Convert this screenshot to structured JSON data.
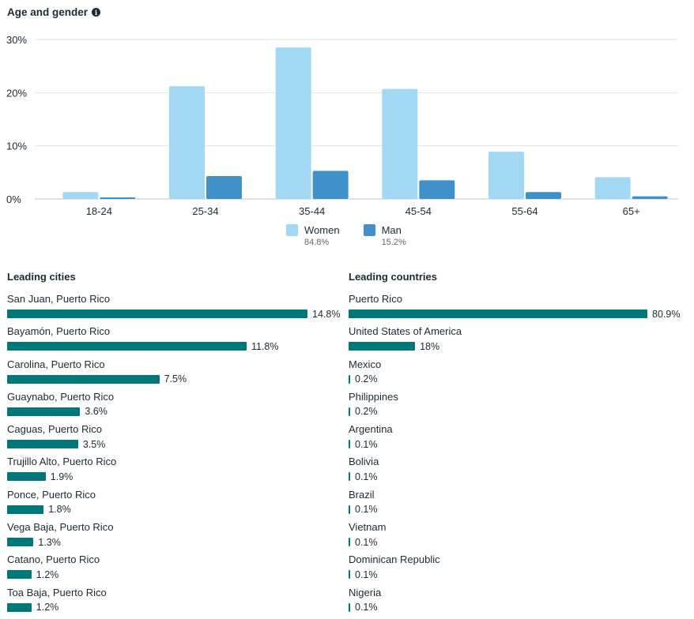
{
  "header": {
    "title": "Age and gender",
    "info_icon": "info-circle-icon"
  },
  "colors": {
    "women": "#a3d8f4",
    "man": "#3e91c9",
    "bar": "#00787a",
    "grid": "#e3e5e8"
  },
  "chart_data": [
    {
      "type": "bar",
      "title": "Age and gender",
      "categories": [
        "18-24",
        "25-34",
        "35-44",
        "45-54",
        "55-64",
        "65+"
      ],
      "series": [
        {
          "name": "Women",
          "total": "84.8%",
          "values": [
            1.3,
            21.2,
            28.5,
            20.7,
            8.9,
            4.1
          ]
        },
        {
          "name": "Man",
          "total": "15.2%",
          "values": [
            0.3,
            4.3,
            5.3,
            3.5,
            1.3,
            0.5
          ]
        }
      ],
      "yticks": [
        "0%",
        "10%",
        "20%",
        "30%"
      ],
      "ytick_values": [
        0,
        10,
        20,
        30
      ],
      "ylim": [
        0,
        30
      ],
      "xlabel": "",
      "ylabel": "",
      "grid": true,
      "legend": "bottom-center"
    },
    {
      "type": "bar",
      "title": "Leading cities",
      "orientation": "horizontal",
      "categories": [
        "San Juan, Puerto Rico",
        "Bayamón, Puerto Rico",
        "Carolina, Puerto Rico",
        "Guaynabo, Puerto Rico",
        "Caguas, Puerto Rico",
        "Trujillo Alto, Puerto Rico",
        "Ponce, Puerto Rico",
        "Vega Baja, Puerto Rico",
        "Catano, Puerto Rico",
        "Toa Baja, Puerto Rico"
      ],
      "values": [
        14.8,
        11.8,
        7.5,
        3.6,
        3.5,
        1.9,
        1.8,
        1.3,
        1.2,
        1.2
      ],
      "labels": [
        "14.8%",
        "11.8%",
        "7.5%",
        "3.6%",
        "3.5%",
        "1.9%",
        "1.8%",
        "1.3%",
        "1.2%",
        "1.2%"
      ]
    },
    {
      "type": "bar",
      "title": "Leading countries",
      "orientation": "horizontal",
      "categories": [
        "Puerto Rico",
        "United States of America",
        "Mexico",
        "Philippines",
        "Argentina",
        "Bolivia",
        "Brazil",
        "Vietnam",
        "Dominican Republic",
        "Nigeria"
      ],
      "values": [
        80.9,
        18,
        0.2,
        0.2,
        0.1,
        0.1,
        0.1,
        0.1,
        0.1,
        0.1
      ],
      "labels": [
        "80.9%",
        "18%",
        "0.2%",
        "0.2%",
        "0.1%",
        "0.1%",
        "0.1%",
        "0.1%",
        "0.1%",
        "0.1%"
      ]
    }
  ]
}
